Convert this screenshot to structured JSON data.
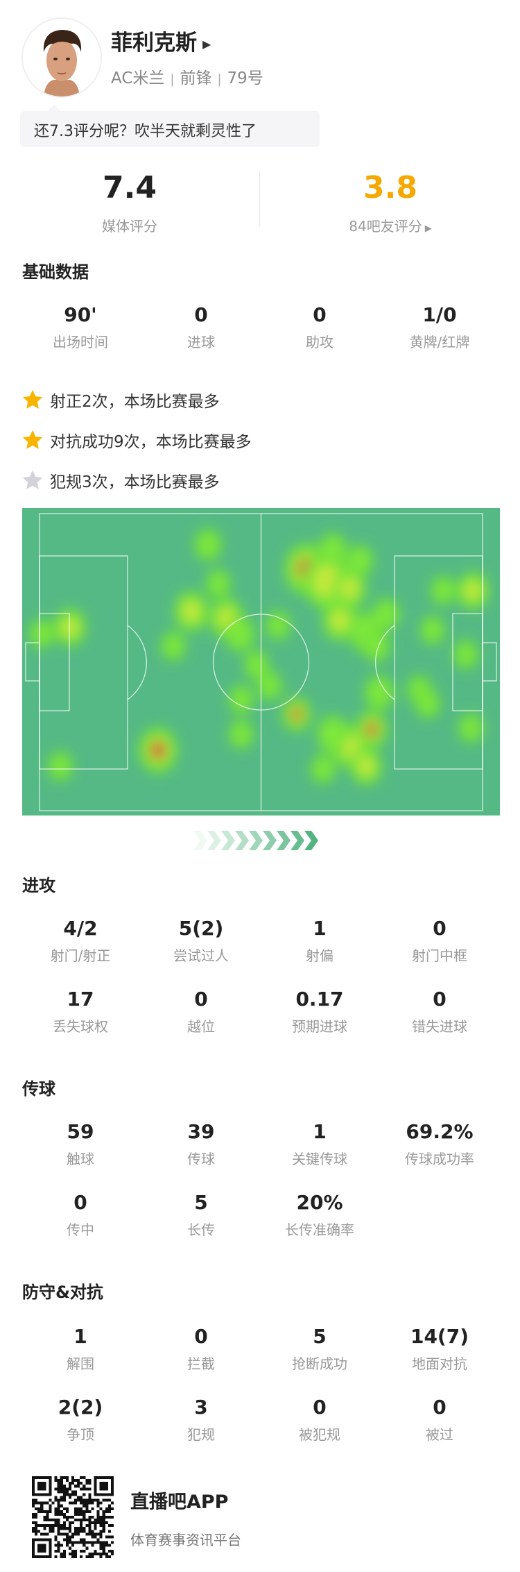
{
  "player": {
    "name": "菲利克斯",
    "team": "AC米兰",
    "position": "前锋",
    "number": "79号",
    "separator": "|"
  },
  "comment": "还7.3评分呢？吹半天就剩灵性了",
  "ratings": {
    "media": {
      "value": "7.4",
      "label": "媒体评分",
      "color": "#222222"
    },
    "fans": {
      "value": "3.8",
      "label": "84吧友评分",
      "color": "#f5a800"
    }
  },
  "basic": {
    "title": "基础数据",
    "stats": [
      {
        "value": "90'",
        "label": "出场时间"
      },
      {
        "value": "0",
        "label": "进球"
      },
      {
        "value": "0",
        "label": "助攻"
      },
      {
        "value": "1/0",
        "label": "黄牌/红牌"
      }
    ]
  },
  "highlights": [
    {
      "text": "射正2次，本场比赛最多",
      "star": "gold"
    },
    {
      "text": "对抗成功9次，本场比赛最多",
      "star": "gold"
    },
    {
      "text": "犯规3次，本场比赛最多",
      "star": "silver"
    }
  ],
  "heatmap": {
    "pitch_color": "#55b985",
    "attack_direction": "right"
  },
  "attack": {
    "title": "进攻",
    "stats": [
      {
        "value": "4/2",
        "label": "射门/射正"
      },
      {
        "value": "5(2)",
        "label": "尝试过人"
      },
      {
        "value": "1",
        "label": "射偏"
      },
      {
        "value": "0",
        "label": "射门中框"
      },
      {
        "value": "17",
        "label": "丢失球权"
      },
      {
        "value": "0",
        "label": "越位"
      },
      {
        "value": "0.17",
        "label": "预期进球"
      },
      {
        "value": "0",
        "label": "错失进球"
      }
    ]
  },
  "passing": {
    "title": "传球",
    "stats": [
      {
        "value": "59",
        "label": "触球"
      },
      {
        "value": "39",
        "label": "传球"
      },
      {
        "value": "1",
        "label": "关键传球"
      },
      {
        "value": "69.2%",
        "label": "传球成功率"
      },
      {
        "value": "0",
        "label": "传中"
      },
      {
        "value": "5",
        "label": "长传"
      },
      {
        "value": "20%",
        "label": "长传准确率"
      }
    ]
  },
  "defense": {
    "title": "防守&对抗",
    "stats": [
      {
        "value": "1",
        "label": "解围"
      },
      {
        "value": "0",
        "label": "拦截"
      },
      {
        "value": "5",
        "label": "抢断成功"
      },
      {
        "value": "14(7)",
        "label": "地面对抗"
      },
      {
        "value": "2(2)",
        "label": "争顶"
      },
      {
        "value": "3",
        "label": "犯规"
      },
      {
        "value": "0",
        "label": "被犯规"
      },
      {
        "value": "0",
        "label": "被过"
      }
    ]
  },
  "footer": {
    "app_name": "直播吧APP",
    "tagline": "体育赛事资讯平台"
  }
}
